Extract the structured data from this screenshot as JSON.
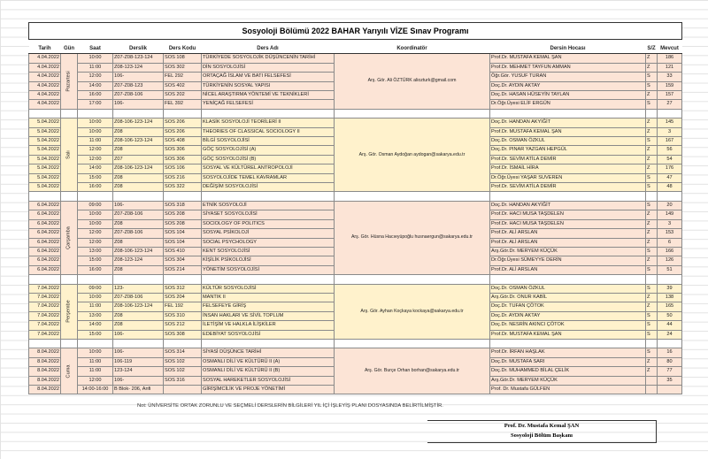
{
  "title": "Sosyoloji Bölümü 2022  BAHAR Yarıyılı VİZE Sınav Programı",
  "headers": [
    "Tarih",
    "Gün",
    "Saat",
    "Derslik",
    "Ders Kodu",
    "Ders Adı",
    "Koordinatör",
    "Dersin Hocası",
    "S/Z",
    "Mevcut"
  ],
  "colors": {
    "pink": "#fce4d6",
    "yellow": "#fff2cc",
    "border": "#8a8a8a"
  },
  "days": [
    {
      "day": "Pazartesi",
      "color": "pink",
      "coordinator": "Arş. Gör. Ali ÖZTÜRK aliozturk@gmail.com",
      "rows": [
        {
          "date": "4.04.2022",
          "time": "10:00",
          "room": "Z07-Z08-123-124",
          "code": "SOS 108",
          "course": "TÜRKİYEDE SOSYOLOJİK DÜŞÜNCENİN TARİHİ",
          "teacher": "Prof.Dr. MUSTAFA KEMAL ŞAN",
          "sz": "Z",
          "count": "186"
        },
        {
          "date": "4.04.2022",
          "time": "11:00",
          "room": "Z08-123-124",
          "code": "SOS 302",
          "course": "DİN SOSYOLOJİSİ",
          "teacher": "Prof.Dr. MEHMET TAYFUN AMMAN",
          "sz": "Z",
          "count": "121"
        },
        {
          "date": "4.04.2022",
          "time": "12:00",
          "room": "106-",
          "code": "FEL 292",
          "course": "ORTAÇAĞ İSLAM VE BATI FELSEFESİ",
          "teacher": "Öğr.Gör. YUSUF TURAN",
          "sz": "S",
          "count": "33"
        },
        {
          "date": "4.04.2022",
          "time": "14:00",
          "room": "Z07-Z08-123",
          "code": "SOS 402",
          "course": "TÜRKİYENİN SOSYAL YAPISI",
          "teacher": "Doç.Dr. AYDIN AKTAY",
          "sz": "S",
          "count": "159"
        },
        {
          "date": "4.04.2022",
          "time": "16:00",
          "room": "Z07-Z08-106",
          "code": "SOS 202",
          "course": "NİCEL ARAŞTIRMA YÖNTEMİ VE TEKNİKLERİ",
          "teacher": "Doç.Dr. HASAN HÜSEYİN TAYLAN",
          "sz": "Z",
          "count": "157"
        },
        {
          "date": "4.04.2022",
          "time": "17:00",
          "room": "106-",
          "code": "FEL 392",
          "course": "YENİÇAĞ FELSEFESİ",
          "teacher": "Dr.Öğr.Üyesi ELİF ERGÜN",
          "sz": "S",
          "count": "27"
        }
      ]
    },
    {
      "day": "Salı",
      "color": "yellow",
      "coordinator": "Arş. Gör. Osman Aydoğan aydogan@sakarya.edu.tr",
      "rows": [
        {
          "date": "5.04.2022",
          "time": "10:00",
          "room": "Z08-106-123-124",
          "code": "SOS 206",
          "course": "KLASİK SOSYOLOJİ TEORİLERİ II",
          "teacher": "Doç.Dr. HANDAN AKYİĞİT",
          "sz": "Z",
          "count": "145"
        },
        {
          "date": "5.04.2022",
          "time": "10:00",
          "room": "Z08",
          "code": "SOS 206",
          "course": "THEORIES OF CLASSICAL SOCIOLOGY II",
          "teacher": "Prof.Dr. MUSTAFA KEMAL ŞAN",
          "sz": "Z",
          "count": "3"
        },
        {
          "date": "5.04.2022",
          "time": "11:00",
          "room": "Z08-106-123-124",
          "code": "SOS 408",
          "course": "BİLGİ SOSYOLOJİSİ",
          "teacher": "Doç.Dr. OSMAN ÖZKUL",
          "sz": "S",
          "count": "167"
        },
        {
          "date": "5.04.2022",
          "time": "12:00",
          "room": "Z08",
          "code": "SOS 306",
          "course": "GÖÇ SOSYOLOJİSİ (A)",
          "teacher": "Doç.Dr. PINAR YAZGAN HEPGÜL",
          "sz": "Z",
          "count": "56"
        },
        {
          "date": "5.04.2022",
          "time": "12:00",
          "room": "Z07",
          "code": "SOS 306",
          "course": "GÖÇ SOSYOLOJİSİ (B)",
          "teacher": "Prof.Dr. SEVİM ATİLA DEMİR",
          "sz": "Z",
          "count": "54"
        },
        {
          "date": "5.04.2022",
          "time": "14:00",
          "room": "Z08-106-123-124",
          "code": "SOS 106",
          "course": "SOSYAL VE KÜLTÜREL ANTROPOLOJİ",
          "teacher": "Prof.Dr. İSMAİL HİRA",
          "sz": "Z",
          "count": "176"
        },
        {
          "date": "5.04.2022",
          "time": "15:00",
          "room": "Z08",
          "code": "SOS 216",
          "course": "SOSYOLOJİDE TEMEL KAVRAMLAR",
          "teacher": "Dr.Öğr.Üyesi YAŞAR SUVEREN",
          "sz": "S",
          "count": "47"
        },
        {
          "date": "5.04.2022",
          "time": "16:00",
          "room": "Z08",
          "code": "SOS 322",
          "course": "DEĞİŞİM SOSYOLOJİSİ",
          "teacher": "Prof.Dr. SEVİM ATİLA DEMİR",
          "sz": "S",
          "count": "48"
        }
      ]
    },
    {
      "day": "Çarşamba",
      "color": "pink",
      "coordinator": "Arş. Gör. Hüsna Hacıeyüpoğlu husnaergun@sakarya.edu.tr",
      "rows": [
        {
          "date": "6.04.2022",
          "time": "09:00",
          "room": "106-",
          "code": "SOS 318",
          "course": "ETNİK SOSYOLOJİ",
          "teacher": "Doç.Dr. HANDAN AKYİĞİT",
          "sz": "S",
          "count": "20"
        },
        {
          "date": "6.04.2022",
          "time": "10:00",
          "room": "Z07-Z08-106",
          "code": "SOS 208",
          "course": "SİYASET SOSYOLOJİSİ",
          "teacher": "Prof.Dr. HACI MUSA TAŞDELEN",
          "sz": "Z",
          "count": "149"
        },
        {
          "date": "6.04.2022",
          "time": "10:00",
          "room": "Z08",
          "code": "SOS 208",
          "course": "SOCIOLOGY OF POLITICS",
          "teacher": "Prof.Dr. HACI MUSA TAŞDELEN",
          "sz": "Z",
          "count": "3"
        },
        {
          "date": "6.04.2022",
          "time": "12:00",
          "room": "Z07-Z08-106",
          "code": "SOS 104",
          "course": "SOSYAL PSİKOLOJİ",
          "teacher": "Prof.Dr. ALİ ARSLAN",
          "sz": "Z",
          "count": "153"
        },
        {
          "date": "6.04.2022",
          "time": "12:00",
          "room": "Z08",
          "code": "SOS 104",
          "course": "SOCIAL PSYCHOLOGY",
          "teacher": "Prof.Dr. ALİ ARSLAN",
          "sz": "Z",
          "count": "6"
        },
        {
          "date": "6.04.2022",
          "time": "13:00",
          "room": "Z08-106-123-124",
          "code": "SOS 410",
          "course": "KENT SOSYOLOJİSİ",
          "teacher": "Arş.Gör.Dr. MERYEM KÜÇÜK",
          "sz": "S",
          "count": "166"
        },
        {
          "date": "6.04.2022",
          "time": "15:00",
          "room": "Z08-123-124",
          "code": "SOS 304",
          "course": "KİŞİLİK PSİKOLOJİSİ",
          "teacher": "Dr.Öğr.Üyesi SÜMEYYE DERİN",
          "sz": "Z",
          "count": "126"
        },
        {
          "date": "6.04.2022",
          "time": "16:00",
          "room": "Z08",
          "code": "SOS 214",
          "course": "YÖNETİM SOSYOLOJİSİ",
          "teacher": "Prof.Dr. ALİ ARSLAN",
          "sz": "S",
          "count": "51"
        }
      ]
    },
    {
      "day": "Perşembe",
      "color": "yellow",
      "coordinator": "Arş. Gör. Ayhan Koçkaya kockaya@sakarya.edu.tr",
      "rows": [
        {
          "date": "7.04.2022",
          "time": "09:00",
          "room": "123-",
          "code": "SOS 312",
          "course": "KÜLTÜR SOSYOLOJİSİ",
          "teacher": "Doç.Dr. OSMAN ÖZKUL",
          "sz": "S",
          "count": "39"
        },
        {
          "date": "7.04.2022",
          "time": "10:00",
          "room": "Z07-Z08-106",
          "code": "SOS 204",
          "course": "MANTIK II",
          "teacher": "Arş.Gör.Dr. ONUR KABİL",
          "sz": "Z",
          "count": "138"
        },
        {
          "date": "7.04.2022",
          "time": "11:00",
          "room": "Z08-106-123-124",
          "code": "FEL 192",
          "course": "FELSEFEYE GİRİŞ",
          "teacher": "Doç.Dr. TUFAN ÇÖTOK",
          "sz": "Z",
          "count": "165"
        },
        {
          "date": "7.04.2022",
          "time": "13:00",
          "room": "Z08",
          "code": "SOS 310",
          "course": "İNSAN HAKLARI VE SİVİL TOPLUM",
          "teacher": "Doç.Dr. AYDIN AKTAY",
          "sz": "S",
          "count": "50"
        },
        {
          "date": "7.04.2022",
          "time": "14:00",
          "room": "Z08",
          "code": "SOS 212",
          "course": "İLETİŞİM VE HALKLA İLİŞKİLER",
          "teacher": "Doç.Dr. NESRİN AKINCI ÇÖTOK",
          "sz": "S",
          "count": "44"
        },
        {
          "date": "7.04.2022",
          "time": "15:00",
          "room": "106-",
          "code": "SOS 308",
          "course": "EDEBİYAT SOSYOLOJİSİ",
          "teacher": "Prof.Dr. MUSTAFA KEMAL ŞAN",
          "sz": "S",
          "count": "24"
        }
      ]
    },
    {
      "day": "Cuma",
      "color": "pink",
      "coordinator": "Arş. Gör. Burçe Orhan borhan@sakarya.edu.tr",
      "rows": [
        {
          "date": "8.04.2022",
          "time": "10:00",
          "room": "106-",
          "code": "SOS 314",
          "course": "SİYASİ DÜŞÜNCE TARİHİ",
          "teacher": "Prof.Dr. İRFAN HAŞLAK",
          "sz": "S",
          "count": "16"
        },
        {
          "date": "8.04.2022",
          "time": "11:00",
          "room": "106-119",
          "code": "SOS 102",
          "course": "OSMANLI DİLİ VE KÜLTÜRÜ II (A)",
          "teacher": "Doç.Dr. MUSTAFA SARI",
          "sz": "Z",
          "count": "80"
        },
        {
          "date": "8.04.2022",
          "time": "11:00",
          "room": "123-124",
          "code": "SOS 102",
          "course": "OSMANLI DİLİ VE KÜLTÜRÜ II (B)",
          "teacher": "Doç.Dr. MUHAMMED BİLAL ÇELİK",
          "sz": "Z",
          "count": "77"
        },
        {
          "date": "8.04.2022",
          "time": "12:00",
          "room": "106-",
          "code": "SOS 316",
          "course": "SOSYAL HAREKETLER SOSYOLOJİSİ",
          "teacher": "Arş.Gör.Dr. MERYEM KÜÇÜK",
          "sz": "",
          "count": "35"
        },
        {
          "date": "8.04.2022",
          "time": "14:00-16:00",
          "room": "B Blok- 206, Anfi",
          "code": "",
          "course": "GİRİŞİMCİLİK VE PROJE YÖNETİMİ",
          "teacher": "Prof. Dr. Mustafa GÜLFEN",
          "sz": "",
          "count": ""
        }
      ]
    }
  ],
  "note": "Not:  ÜNİVERSİTE ORTAK ZORUNLU VE SEÇMELİ DERSLERİN BİLGİLERİ  YIL İÇİ İŞLEYİŞ PLANI DOSYASINDA BELİRTİLMİŞTİR.",
  "signature": {
    "name": "Prof. Dr. Mustafa Kemal ŞAN",
    "role": "Sosyoloji Bölüm Başkanı"
  }
}
